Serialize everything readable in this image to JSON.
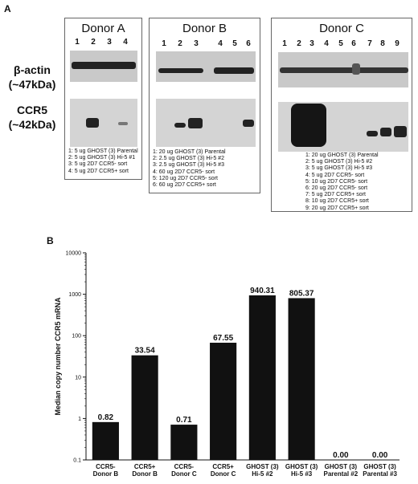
{
  "panel_a": {
    "letter": "A",
    "row_labels": {
      "actin": [
        "β-actin",
        "(~47kDa)"
      ],
      "ccr5": [
        "CCR5",
        "(~42kDa)"
      ]
    },
    "donors": [
      {
        "title": "Donor A",
        "lanes": [
          "1",
          "2",
          "3",
          "4"
        ],
        "legend": [
          "1: 5 ug GHOST (3) Parental",
          "2: 5 ug GHOST (3) Hi-5 #1",
          "3: 5 ug 2D7 CCR5- sort",
          "4: 5 ug 2D7 CCR5+ sort"
        ]
      },
      {
        "title": "Donor B",
        "lanes": [
          "1",
          "2",
          "3",
          "4",
          "5",
          "6"
        ],
        "legend": [
          "1: 20 ug GHOST (3) Parental",
          "2: 2.5 ug GHOST (3) Hi-5 #2",
          "3: 2.5 ug GHOST (3) Hi-5 #3",
          "4: 60 ug 2D7 CCR5- sort",
          "5: 120 ug 2D7 CCR5- sort",
          "6: 60 ug 2D7 CCR5+ sort"
        ]
      },
      {
        "title": "Donor C",
        "lanes": [
          "1",
          "2",
          "3",
          "4",
          "5",
          "6",
          "7",
          "8",
          "9"
        ],
        "legend": [
          "1: 20 ug GHOST (3) Parental",
          "2: 5 ug GHOST (3) Hi-5 #2",
          "3: 5 ug GHOST (3) Hi-5 #3",
          "4: 5 ug 2D7 CCR5- sort",
          "5: 10 ug 2D7 CCR5- sort",
          "6: 20 ug 2D7 CCR5- sort",
          "7: 5 ug 2D7 CCR5+ sort",
          "8: 10 ug 2D7 CCR5+ sort",
          "9: 20 ug 2D7 CCR5+ sort"
        ]
      }
    ]
  },
  "panel_b": {
    "letter": "B"
  },
  "chart_data": {
    "type": "bar",
    "scale": "log",
    "ylabel": "Median copy number CCR5 mRNA",
    "ylim": [
      0.1,
      10000
    ],
    "yticks": [
      "0.1",
      "1",
      "10",
      "100",
      "1000",
      "10000"
    ],
    "categories": [
      [
        "CCR5-",
        "Donor B"
      ],
      [
        "CCR5+",
        "Donor B"
      ],
      [
        "CCR5-",
        "Donor C"
      ],
      [
        "CCR5+",
        "Donor C"
      ],
      [
        "GHOST (3)",
        "Hi-5 #2"
      ],
      [
        "GHOST (3)",
        "Hi-5 #3"
      ],
      [
        "GHOST (3)",
        "Parental #2"
      ],
      [
        "GHOST (3)",
        "Parental #3"
      ]
    ],
    "values": [
      0.82,
      33.54,
      0.71,
      67.55,
      940.31,
      805.37,
      0.0,
      0.0
    ],
    "labels": [
      "0.82",
      "33.54",
      "0.71",
      "67.55",
      "940.31",
      "805.37",
      "0.00",
      "0.00"
    ],
    "bar_color": "#111111"
  }
}
